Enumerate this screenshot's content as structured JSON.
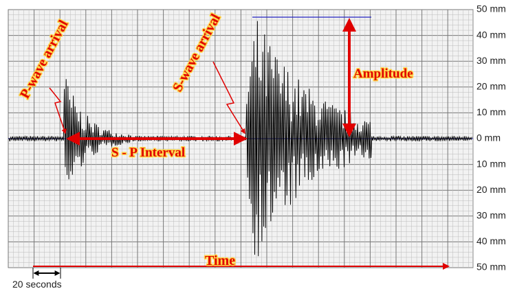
{
  "annotations": {
    "p_wave": "P-wave arrival",
    "s_wave": "S-wave arrival",
    "amplitude": "Amplitude",
    "interval": "S - P Interval",
    "time": "Time",
    "scale": "20 seconds"
  },
  "axis": {
    "labels": [
      "50 mm",
      "40 mm",
      "30 mm",
      "20 mm",
      "10 mm",
      "0 mm",
      "10 mm",
      "20 mm",
      "30 mm",
      "40 mm",
      "50 mm"
    ]
  }
}
